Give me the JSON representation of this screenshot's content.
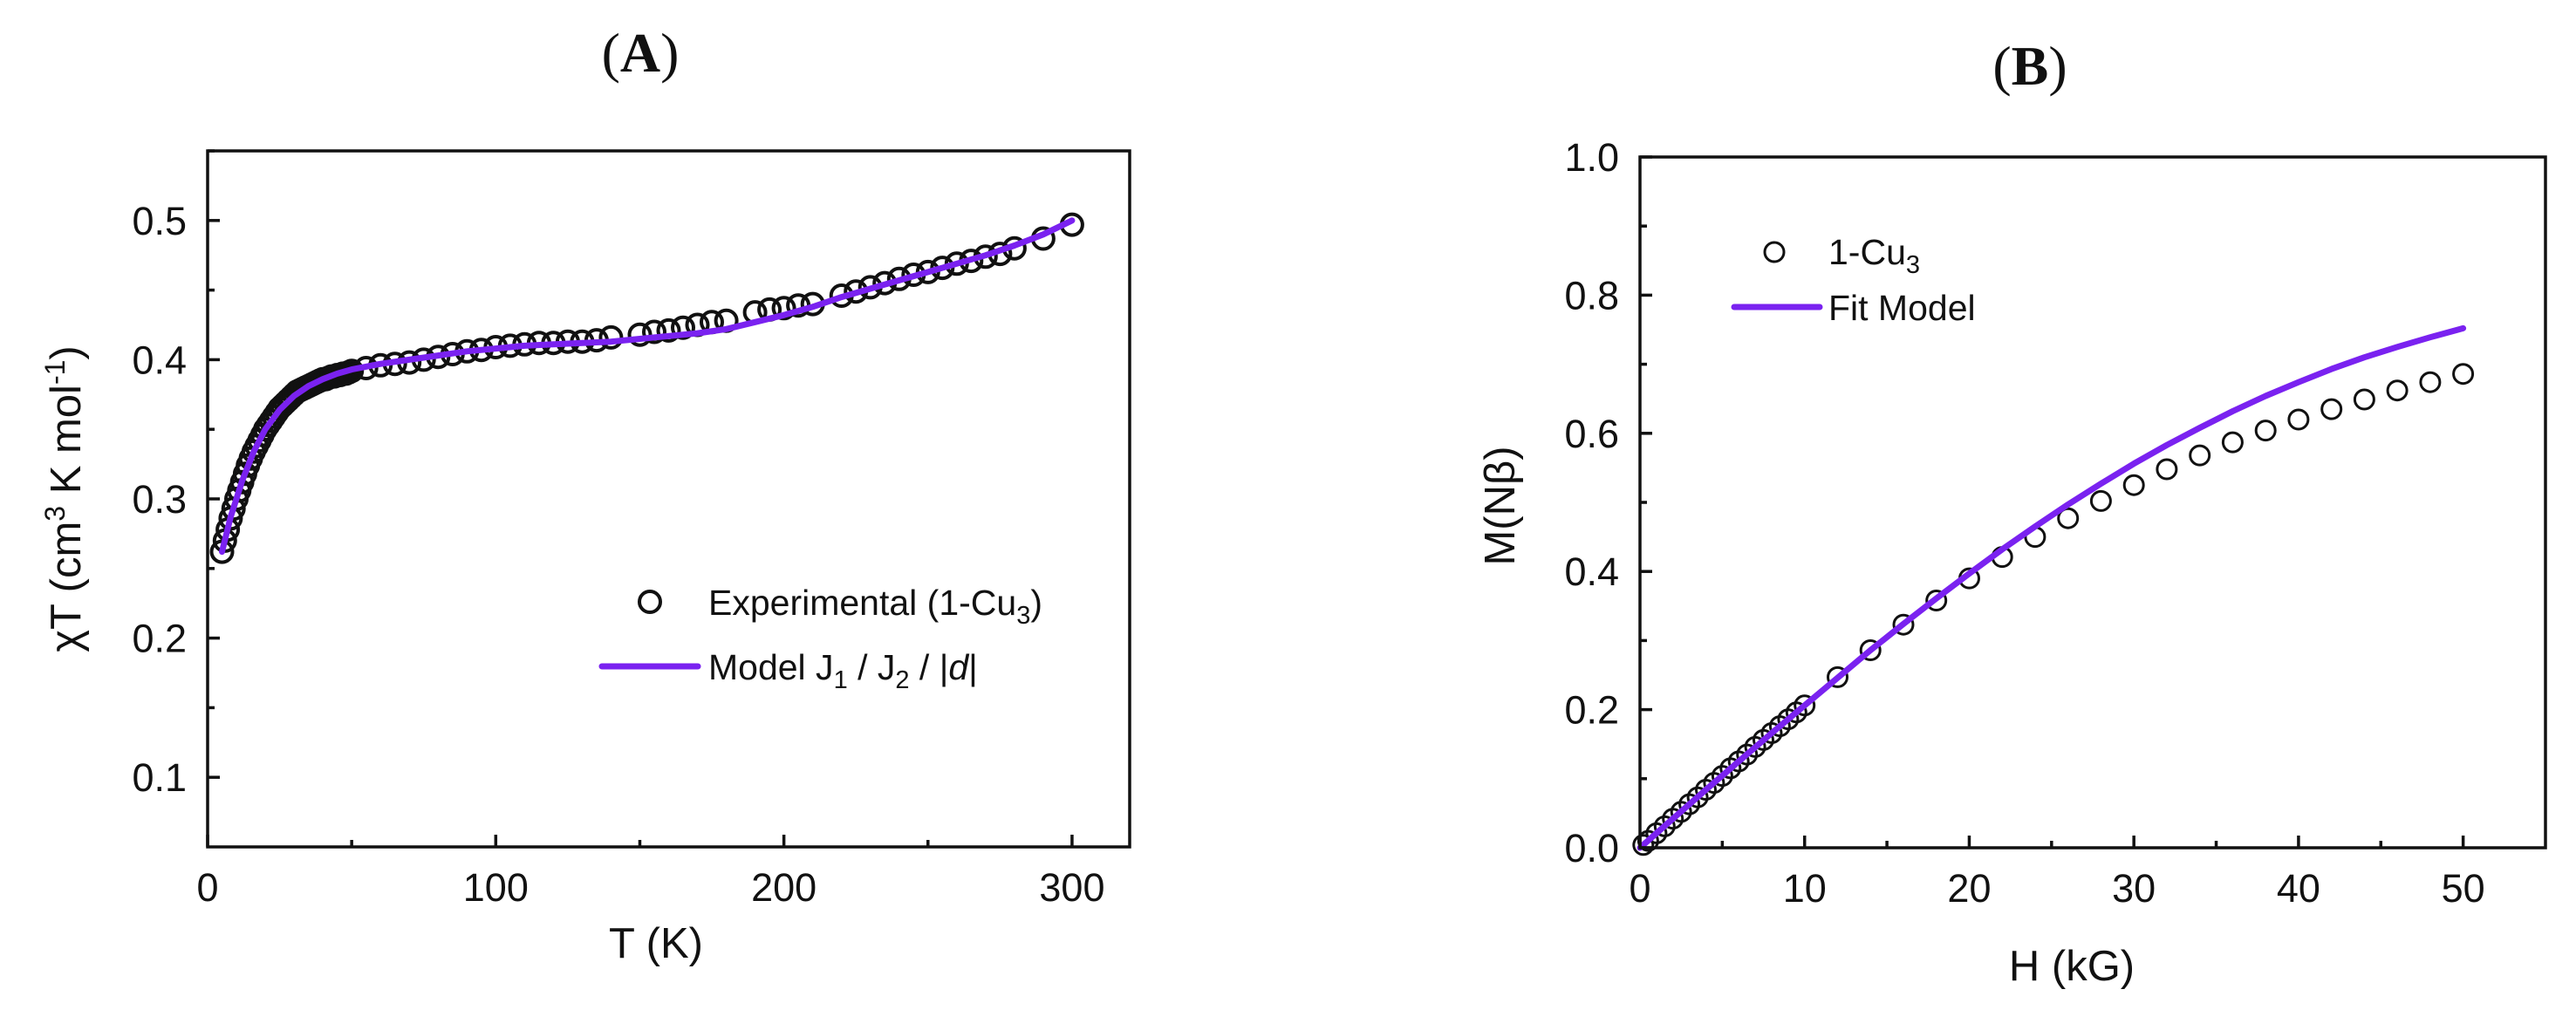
{
  "colors": {
    "fit_line": "#7a22f0",
    "marker": "#111111"
  },
  "chart_data": [
    {
      "id": "A",
      "type": "scatter",
      "panel_label_open": "(",
      "panel_label_letter": "A",
      "panel_label_close": ")",
      "xlabel": "T (K)",
      "ylabel_prefix": "χT (cm",
      "ylabel_sup1": "3",
      "ylabel_mid": " K mol",
      "ylabel_sup2": "-1",
      "ylabel_suffix": ")",
      "xlim": [
        0,
        320
      ],
      "ylim": [
        0.05,
        0.55
      ],
      "xticks": [
        0,
        100,
        200,
        300
      ],
      "xtick_labels": [
        "0",
        "100",
        "200",
        "300"
      ],
      "yticks": [
        0.1,
        0.2,
        0.3,
        0.4,
        0.5
      ],
      "ytick_labels": [
        "0.1",
        "0.2",
        "0.3",
        "0.4",
        "0.5"
      ],
      "legend_position": "lower-right",
      "series": [
        {
          "name": "Experimental (1-Cu3)",
          "legend_label": "Experimental (1-Cu",
          "legend_sub": "3",
          "legend_suffix": ")",
          "kind": "markers",
          "x": [
            5,
            6,
            7,
            8,
            9,
            10,
            11,
            12,
            13,
            14,
            15,
            16,
            17,
            18,
            19,
            20,
            21,
            22,
            23,
            24,
            25,
            26,
            27,
            28,
            29,
            30,
            31,
            32,
            33,
            34,
            35,
            36,
            37,
            38,
            39,
            40,
            41,
            42,
            43,
            44,
            45,
            46,
            47,
            48,
            49,
            50,
            55,
            60,
            65,
            70,
            75,
            80,
            85,
            90,
            95,
            100,
            105,
            110,
            115,
            120,
            125,
            130,
            135,
            140,
            150,
            155,
            160,
            165,
            170,
            175,
            180,
            190,
            195,
            200,
            205,
            210,
            220,
            225,
            230,
            235,
            240,
            245,
            250,
            255,
            260,
            265,
            270,
            275,
            280,
            290,
            300
          ],
          "y": [
            0.262,
            0.27,
            0.278,
            0.286,
            0.293,
            0.3,
            0.306,
            0.312,
            0.318,
            0.324,
            0.329,
            0.334,
            0.338,
            0.342,
            0.346,
            0.35,
            0.353,
            0.356,
            0.359,
            0.362,
            0.365,
            0.367,
            0.369,
            0.371,
            0.373,
            0.375,
            0.377,
            0.378,
            0.379,
            0.38,
            0.381,
            0.382,
            0.383,
            0.384,
            0.385,
            0.386,
            0.386,
            0.387,
            0.388,
            0.388,
            0.389,
            0.389,
            0.39,
            0.39,
            0.391,
            0.392,
            0.394,
            0.396,
            0.397,
            0.398,
            0.4,
            0.402,
            0.404,
            0.406,
            0.407,
            0.409,
            0.41,
            0.411,
            0.412,
            0.412,
            0.413,
            0.413,
            0.414,
            0.416,
            0.418,
            0.42,
            0.421,
            0.423,
            0.425,
            0.427,
            0.428,
            0.434,
            0.436,
            0.437,
            0.439,
            0.44,
            0.446,
            0.449,
            0.452,
            0.455,
            0.458,
            0.461,
            0.463,
            0.466,
            0.469,
            0.471,
            0.474,
            0.476,
            0.48,
            0.487,
            0.497
          ]
        },
        {
          "name": "Model J1 / J2 / |d|",
          "legend_label": "Model J",
          "legend_sub1": "1",
          "legend_mid": " / J",
          "legend_sub2": "2",
          "legend_mid2": " / |",
          "legend_italic": "d",
          "legend_suffix": "|",
          "kind": "line",
          "x": [
            5,
            8,
            12,
            16,
            20,
            25,
            30,
            35,
            40,
            45,
            50,
            60,
            70,
            80,
            90,
            100,
            110,
            120,
            130,
            140,
            150,
            160,
            170,
            180,
            190,
            200,
            210,
            220,
            230,
            240,
            250,
            260,
            270,
            280,
            290,
            300
          ],
          "y": [
            0.262,
            0.287,
            0.313,
            0.334,
            0.35,
            0.364,
            0.374,
            0.381,
            0.386,
            0.39,
            0.393,
            0.397,
            0.4,
            0.403,
            0.406,
            0.408,
            0.41,
            0.411,
            0.412,
            0.413,
            0.415,
            0.417,
            0.419,
            0.422,
            0.427,
            0.432,
            0.438,
            0.445,
            0.451,
            0.457,
            0.463,
            0.469,
            0.475,
            0.482,
            0.49,
            0.5
          ]
        }
      ]
    },
    {
      "id": "B",
      "type": "scatter",
      "panel_label_open": "(",
      "panel_label_letter": "B",
      "panel_label_close": ")",
      "xlabel": "H (kG)",
      "ylabel": "M(Nβ)",
      "xlim": [
        0,
        55
      ],
      "ylim": [
        0,
        1.0
      ],
      "xticks": [
        0,
        10,
        20,
        30,
        40,
        50
      ],
      "xtick_labels": [
        "0",
        "10",
        "20",
        "30",
        "40",
        "50"
      ],
      "yticks": [
        0,
        0.2,
        0.4,
        0.6,
        0.8,
        1.0
      ],
      "ytick_labels": [
        "0.0",
        "0.2",
        "0.4",
        "0.6",
        "0.8",
        "1.0"
      ],
      "legend_position": "top-left",
      "series": [
        {
          "name": "1-Cu3",
          "legend_label": "1-Cu",
          "legend_sub": "3",
          "kind": "markers",
          "x": [
            0.2,
            0.5,
            1,
            1.5,
            2,
            2.5,
            3,
            3.5,
            4,
            4.5,
            5,
            5.5,
            6,
            6.5,
            7,
            7.5,
            8,
            8.5,
            9,
            9.5,
            10,
            12,
            14,
            16,
            18,
            20,
            22,
            24,
            26,
            28,
            30,
            32,
            34,
            36,
            38,
            40,
            42,
            44,
            46,
            48,
            50
          ],
          "y": [
            0.004,
            0.01,
            0.021,
            0.031,
            0.042,
            0.052,
            0.063,
            0.073,
            0.084,
            0.094,
            0.104,
            0.115,
            0.125,
            0.135,
            0.146,
            0.156,
            0.166,
            0.176,
            0.186,
            0.196,
            0.206,
            0.247,
            0.286,
            0.323,
            0.358,
            0.39,
            0.421,
            0.45,
            0.477,
            0.502,
            0.525,
            0.548,
            0.568,
            0.587,
            0.604,
            0.62,
            0.635,
            0.649,
            0.662,
            0.674,
            0.686
          ]
        },
        {
          "name": "Fit Model",
          "legend_label": "Fit Model",
          "kind": "line",
          "x": [
            0,
            2,
            4,
            6,
            8,
            10,
            12,
            14,
            16,
            18,
            20,
            22,
            24,
            26,
            28,
            30,
            32,
            34,
            36,
            38,
            40,
            42,
            44,
            46,
            48,
            50
          ],
          "y": [
            0,
            0.042,
            0.084,
            0.125,
            0.166,
            0.206,
            0.246,
            0.286,
            0.324,
            0.361,
            0.397,
            0.432,
            0.465,
            0.497,
            0.527,
            0.556,
            0.583,
            0.608,
            0.632,
            0.654,
            0.674,
            0.693,
            0.71,
            0.725,
            0.739,
            0.752
          ]
        }
      ]
    }
  ]
}
